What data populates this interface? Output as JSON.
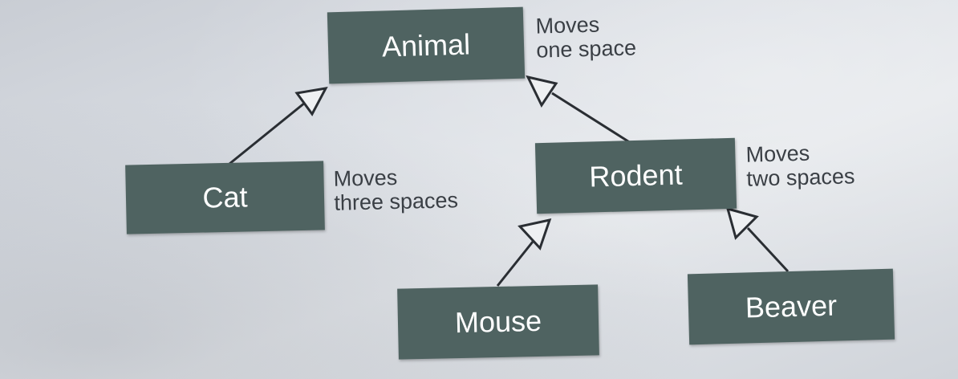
{
  "diagram": {
    "classes": [
      {
        "id": "animal",
        "name": "Animal",
        "note_line1": "Moves",
        "note_line2": "one space"
      },
      {
        "id": "cat",
        "name": "Cat",
        "note_line1": "Moves",
        "note_line2": "three spaces"
      },
      {
        "id": "rodent",
        "name": "Rodent",
        "note_line1": "Moves",
        "note_line2": "two spaces"
      },
      {
        "id": "mouse",
        "name": "Mouse"
      },
      {
        "id": "beaver",
        "name": "Beaver"
      }
    ],
    "inheritance": [
      {
        "child": "cat",
        "parent": "animal"
      },
      {
        "child": "rodent",
        "parent": "animal"
      },
      {
        "child": "mouse",
        "parent": "rodent"
      },
      {
        "child": "beaver",
        "parent": "rodent"
      }
    ],
    "colors": {
      "box": "#4f6361",
      "box_text": "#ffffff",
      "line": "#2a2e33",
      "note_text": "#3a3f45"
    }
  }
}
